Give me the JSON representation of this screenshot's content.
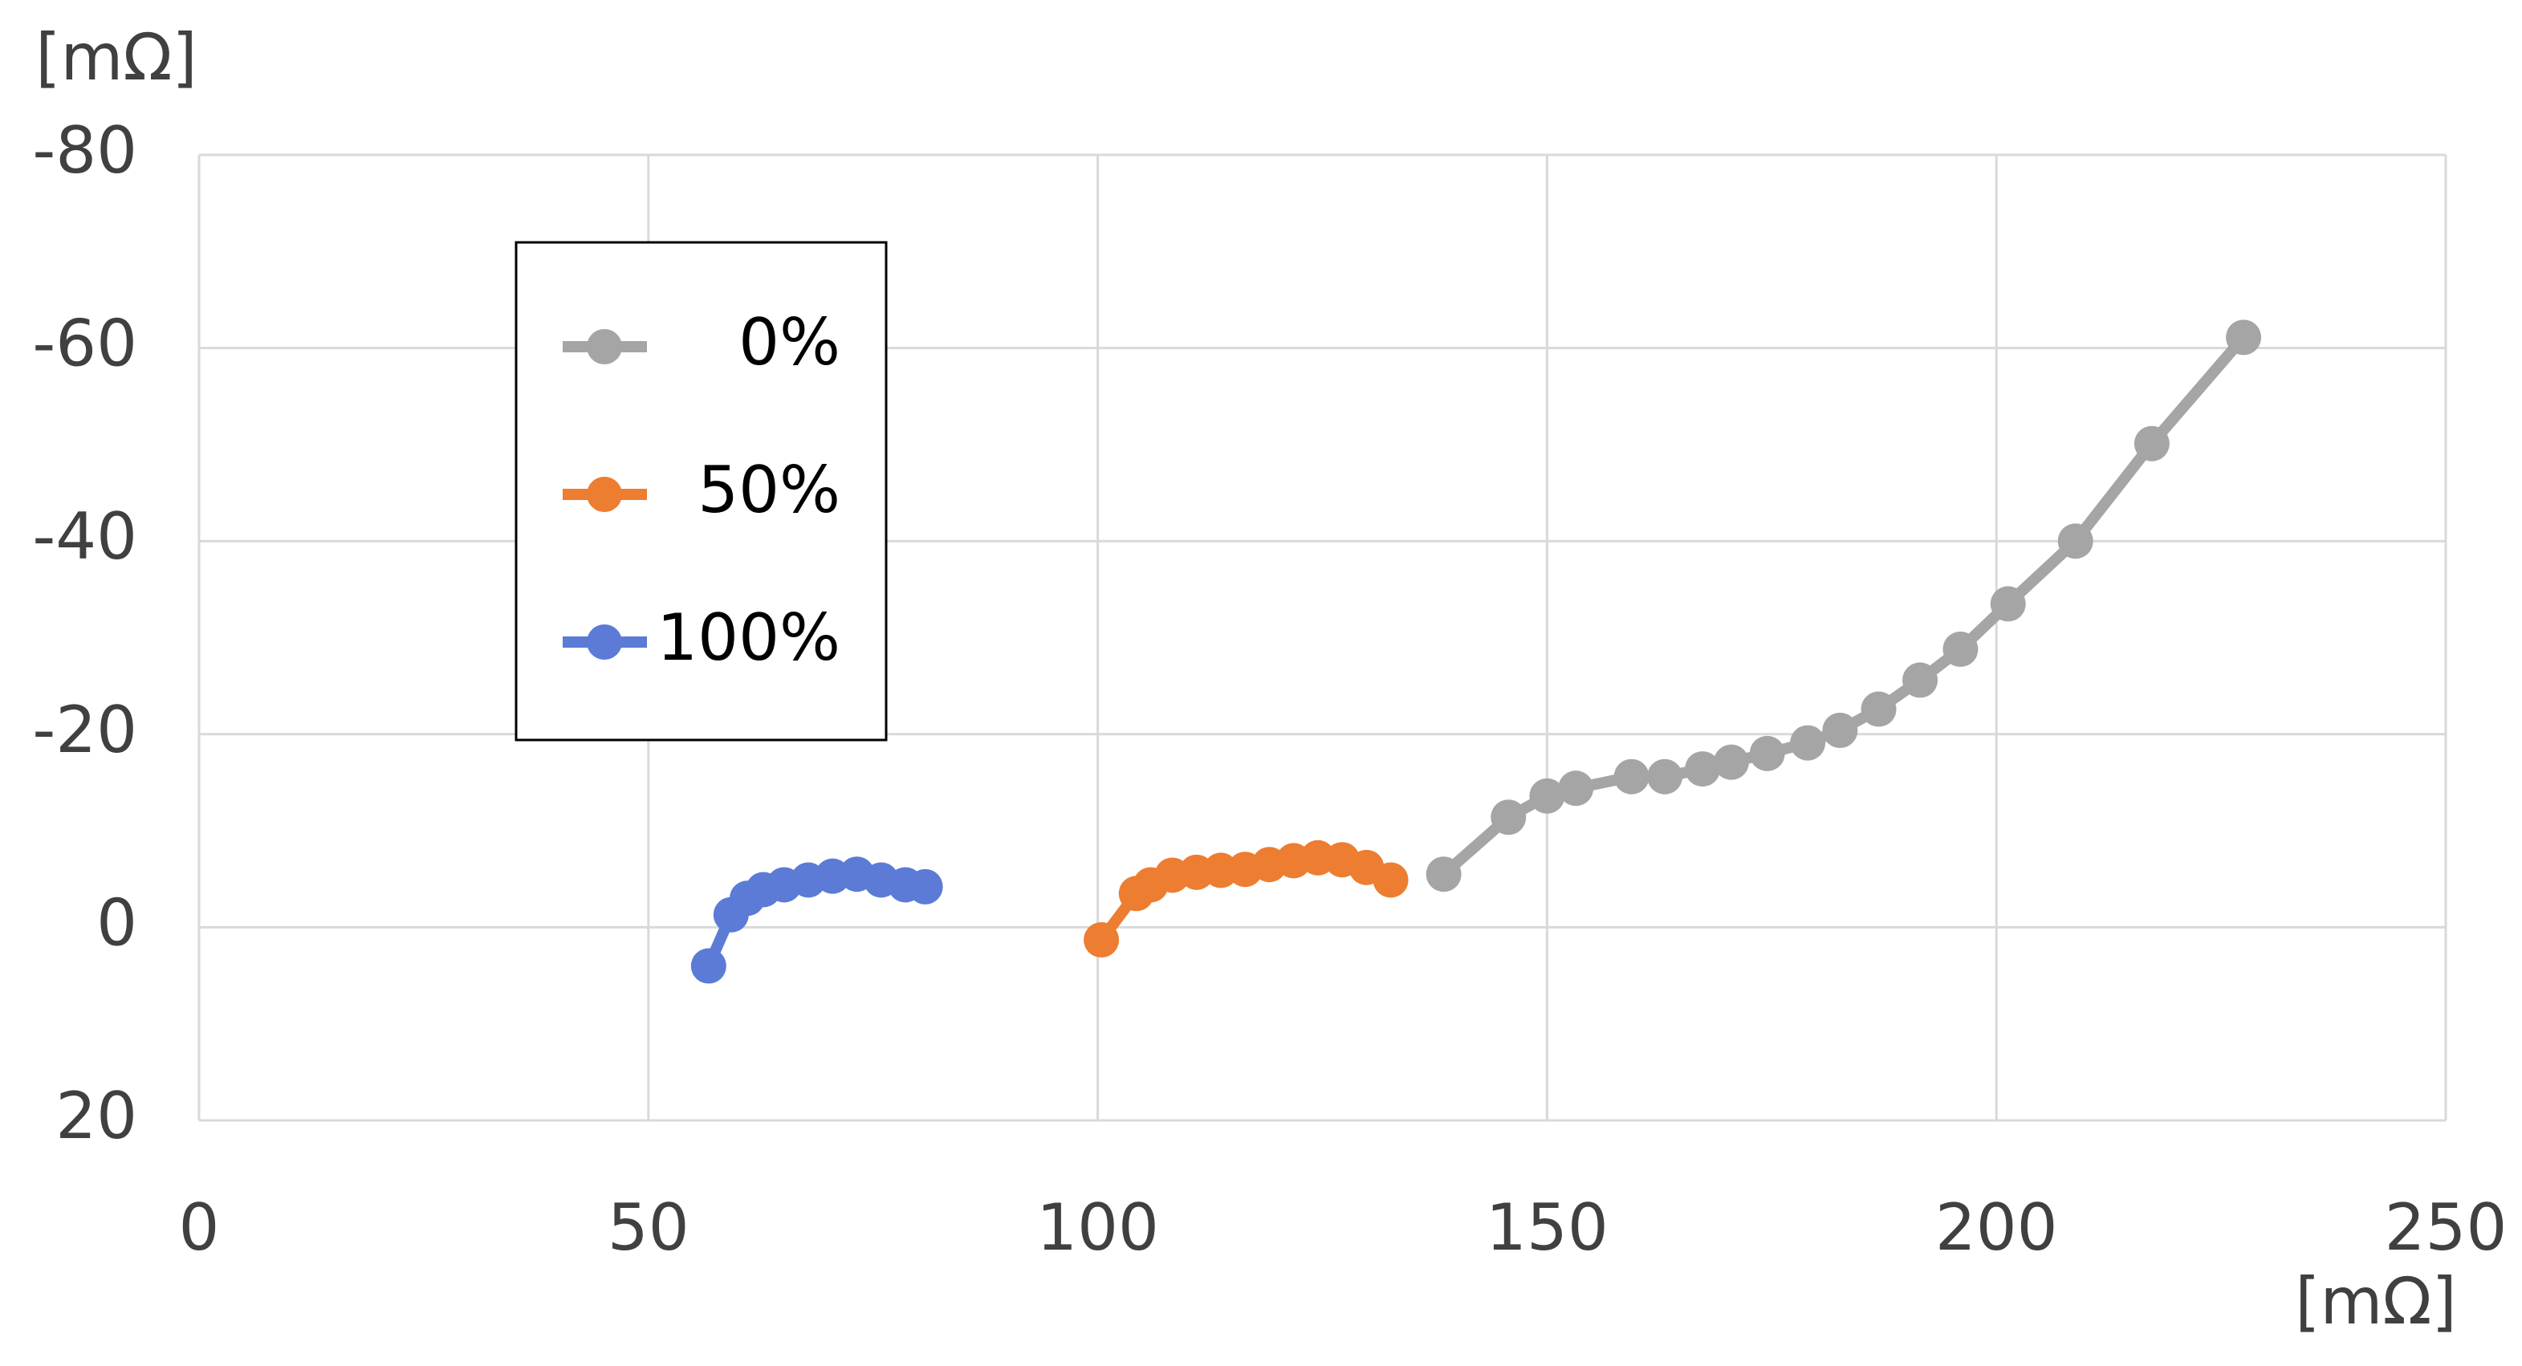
{
  "chart_data": {
    "type": "line",
    "xlabel": "[mΩ]",
    "ylabel": "[mΩ]",
    "xlim": [
      0,
      250
    ],
    "xticks": [
      0,
      50,
      100,
      150,
      200,
      250
    ],
    "ylim": [
      20,
      -80
    ],
    "yticks": [
      -80,
      -60,
      -40,
      -20,
      0,
      20
    ],
    "grid": true,
    "legend": "upper-left",
    "series": [
      {
        "name": "0%",
        "color": "#a5a5a5",
        "x": [
          138.5,
          145.7,
          150.0,
          153.2,
          159.4,
          163.1,
          167.3,
          170.5,
          174.5,
          179.0,
          182.6,
          186.9,
          191.5,
          196.0,
          201.3,
          208.8,
          217.3,
          227.5
        ],
        "values": [
          -5.5,
          -11.4,
          -13.6,
          -14.4,
          -15.6,
          -15.6,
          -16.4,
          -17.1,
          -18.0,
          -19.1,
          -20.4,
          -22.6,
          -25.6,
          -28.8,
          -33.5,
          -40.0,
          -50.1,
          -61.1
        ]
      },
      {
        "name": "50%",
        "color": "#ed7d31",
        "x": [
          100.4,
          104.3,
          105.9,
          108.3,
          111.0,
          113.7,
          116.4,
          119.1,
          121.8,
          124.5,
          127.2,
          129.9,
          132.6
        ],
        "values": [
          1.3,
          -3.5,
          -4.4,
          -5.4,
          -5.7,
          -5.9,
          -6.0,
          -6.5,
          -6.9,
          -7.2,
          -7.0,
          -6.2,
          -4.9
        ]
      },
      {
        "name": "100%",
        "color": "#5b7bd6",
        "x": [
          56.7,
          59.2,
          61.0,
          62.8,
          65.1,
          67.8,
          70.5,
          73.2,
          75.9,
          78.6,
          80.8
        ],
        "values": [
          4.0,
          -1.3,
          -3.0,
          -3.9,
          -4.4,
          -4.9,
          -5.3,
          -5.5,
          -4.9,
          -4.4,
          -4.2
        ]
      }
    ]
  }
}
